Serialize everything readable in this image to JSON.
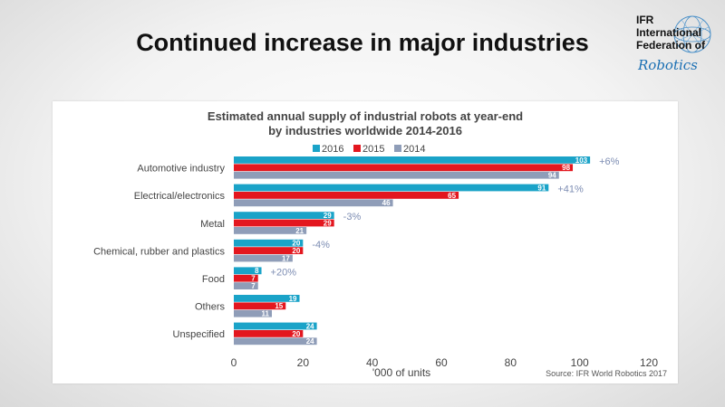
{
  "slide": {
    "title": "Continued increase in major industries"
  },
  "logo": {
    "line1": "IFR",
    "line2": "International",
    "line3": "Federation of",
    "line4": "Robotics",
    "globe": "globe-icon"
  },
  "colors": {
    "s2016": "#1aa3c8",
    "s2015": "#e3171f",
    "s2014": "#8f9db8",
    "growth": "#7d8db3"
  },
  "chart_data": {
    "type": "bar",
    "orientation": "horizontal",
    "title": "Estimated annual supply of industrial robots at year-end",
    "subtitle": "by industries worldwide  2014-2016",
    "xlabel": "'000 of units",
    "ylabel": "",
    "source": "Source: IFR World Robotics 2017",
    "xlim": [
      0,
      120
    ],
    "xticks": [
      0,
      20,
      40,
      60,
      80,
      100,
      120
    ],
    "legend_position": "top",
    "grid": false,
    "categories": [
      "Automotive industry",
      "Electrical/electronics",
      "Metal",
      "Chemical, rubber and plastics",
      "Food",
      "Others",
      "Unspecified"
    ],
    "series": [
      {
        "name": "2016",
        "values": [
          103,
          91,
          29,
          20,
          8,
          19,
          24
        ]
      },
      {
        "name": "2015",
        "values": [
          98,
          65,
          29,
          20,
          7,
          15,
          20
        ]
      },
      {
        "name": "2014",
        "values": [
          94,
          46,
          21,
          17,
          7,
          11,
          24
        ]
      }
    ],
    "growth_labels": [
      "+6%",
      "+41%",
      "-3%",
      "-4%",
      "+20%",
      "",
      ""
    ]
  }
}
